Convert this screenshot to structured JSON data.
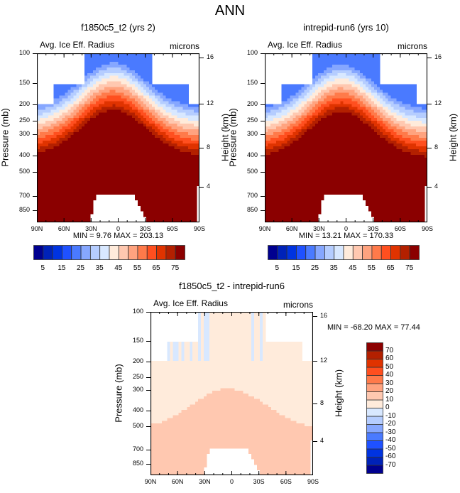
{
  "main_title": "ANN",
  "colors": {
    "colormap": [
      "#00008f",
      "#0022b8",
      "#0033e0",
      "#1f51ff",
      "#4a7aff",
      "#86a7ff",
      "#b5cdff",
      "#d8e8ff",
      "#ffebdb",
      "#ffc8b0",
      "#ffa37f",
      "#ff7a4a",
      "#ff4f1f",
      "#e03300",
      "#b32000",
      "#8b0000"
    ],
    "missing": "#ffffff"
  },
  "chart_data": [
    {
      "type": "heatmap",
      "title": "f1850c5_t2 (yrs 2)",
      "variable": "Avg. Ice Eff. Radius",
      "units": "microns",
      "xlabel": "",
      "ylabel": "Pressure (mb)",
      "ylabel_right": "Height (km)",
      "x_ticks": [
        "90N",
        "60N",
        "30N",
        "0",
        "30S",
        "60S",
        "90S"
      ],
      "y_ticks": [
        "100",
        "150",
        "200",
        "250",
        "300",
        "400",
        "500",
        "700",
        "850"
      ],
      "y_ticks_right": [
        "16",
        "12",
        "8",
        "4"
      ],
      "min": "9.76",
      "max": "203.13",
      "minmax_text": "MIN =   9.76  MAX = 203.13",
      "contour_levels": [
        5,
        10,
        15,
        20,
        25,
        30,
        35,
        40,
        45,
        50,
        55,
        60,
        65,
        70,
        75
      ],
      "colorbar_labels": [
        "5",
        "15",
        "25",
        "35",
        "45",
        "55",
        "65",
        "75"
      ],
      "description": "Ice effective radius increases downward; >75 microns below ~300 mb (tropics) and ~400 mb (poles); values <40 in upper troposphere near 100 mb"
    },
    {
      "type": "heatmap",
      "title": "intrepid-run6 (yrs 10)",
      "variable": "Avg. Ice Eff. Radius",
      "units": "microns",
      "xlabel": "",
      "ylabel": "Pressure (mb)",
      "ylabel_right": "Height (km)",
      "x_ticks": [
        "90N",
        "60N",
        "30N",
        "0",
        "30S",
        "60S",
        "90S"
      ],
      "y_ticks": [
        "100",
        "150",
        "200",
        "250",
        "300",
        "400",
        "500",
        "700",
        "850"
      ],
      "y_ticks_right": [
        "16",
        "12",
        "8",
        "4"
      ],
      "min": "13.21",
      "max": "170.33",
      "minmax_text": "MIN =  13.21  MAX = 170.33",
      "contour_levels": [
        5,
        10,
        15,
        20,
        25,
        30,
        35,
        40,
        45,
        50,
        55,
        60,
        65,
        70,
        75
      ],
      "colorbar_labels": [
        "5",
        "15",
        "25",
        "35",
        "45",
        "55",
        "65",
        "75"
      ],
      "description": "Similar structure to f1850c5_t2 with slightly different magnitudes"
    },
    {
      "type": "heatmap",
      "title": "f1850c5_t2 - intrepid-run6",
      "variable": "Avg. Ice Eff. Radius",
      "units": "microns",
      "xlabel": "",
      "ylabel": "Pressure (mb)",
      "ylabel_right": "Height (km)",
      "x_ticks": [
        "90N",
        "60N",
        "30N",
        "0",
        "30S",
        "60S",
        "90S"
      ],
      "y_ticks": [
        "100",
        "150",
        "200",
        "250",
        "300",
        "400",
        "500",
        "700",
        "850"
      ],
      "y_ticks_right": [
        "16",
        "12",
        "8",
        "4"
      ],
      "min": "-68.20",
      "max": "77.44",
      "minmax_text": "MIN = -68.20  MAX =  77.44",
      "contour_levels": [
        -70,
        -60,
        -50,
        -40,
        -30,
        -20,
        -10,
        0,
        10,
        20,
        30,
        40,
        50,
        60,
        70
      ],
      "colorbar_labels": [
        "70",
        "60",
        "50",
        "40",
        "30",
        "20",
        "10",
        "0",
        "-10",
        "-20",
        "-30",
        "-40",
        "-50",
        "-60",
        "-70"
      ],
      "description": "Differences mostly 0-10 in upper levels, 10-20 in lower troposphere; small negative (-10-0) near top/edges"
    }
  ]
}
